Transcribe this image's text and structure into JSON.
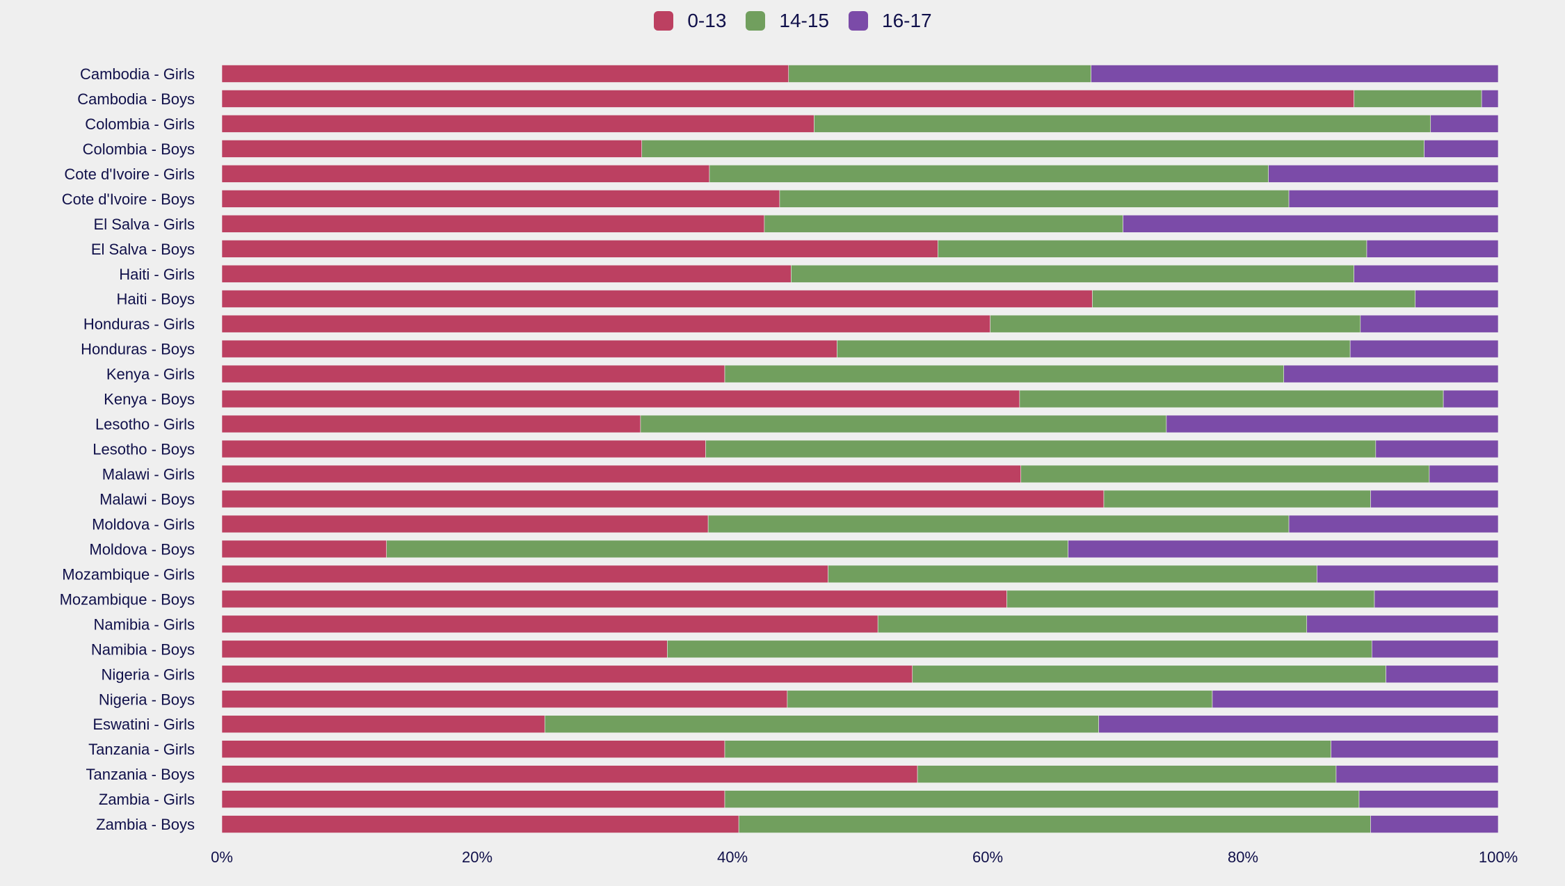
{
  "chart_data": {
    "type": "bar",
    "orientation": "horizontal",
    "stacked": true,
    "normalized": true,
    "title": "",
    "xlabel": "",
    "ylabel": "",
    "xlim": [
      0,
      100
    ],
    "x_ticks": [
      "0%",
      "20%",
      "40%",
      "60%",
      "80%",
      "100%"
    ],
    "legend_position": "top-center",
    "grid": false,
    "categories": [
      "Cambodia - Girls",
      "Cambodia - Boys",
      "Colombia - Girls",
      "Colombia - Boys",
      "Cote d'Ivoire - Girls",
      "Cote d'Ivoire - Boys",
      "El Salva - Girls",
      "El Salva - Boys",
      "Haiti - Girls",
      "Haiti - Boys",
      "Honduras - Girls",
      "Honduras - Boys",
      "Kenya - Girls",
      "Kenya - Boys",
      "Lesotho - Girls",
      "Lesotho - Boys",
      "Malawi - Girls",
      "Malawi - Boys",
      "Moldova - Girls",
      "Moldova - Boys",
      "Mozambique - Girls",
      "Mozambique - Boys",
      "Namibia - Girls",
      "Namibia - Boys",
      "Nigeria - Girls",
      "Nigeria - Boys",
      "Eswatini - Girls",
      "Tanzania - Girls",
      "Tanzania - Boys",
      "Zambia - Girls",
      "Zambia - Boys"
    ],
    "series": [
      {
        "name": "0-13",
        "color": "#bc4061",
        "values": [
          44.4,
          88.7,
          46.4,
          32.9,
          38.2,
          43.7,
          42.5,
          56.1,
          44.6,
          68.2,
          60.2,
          48.2,
          39.4,
          62.5,
          32.8,
          37.9,
          62.6,
          69.1,
          38.1,
          12.9,
          47.5,
          61.5,
          51.4,
          34.9,
          54.1,
          44.3,
          25.3,
          39.4,
          54.5,
          39.4,
          40.5
        ]
      },
      {
        "name": "14-15",
        "color": "#719f5e",
        "values": [
          23.7,
          10.0,
          48.3,
          61.3,
          43.8,
          39.9,
          28.1,
          33.6,
          44.1,
          25.3,
          29.0,
          40.2,
          43.8,
          33.2,
          41.2,
          52.5,
          32.0,
          20.9,
          45.5,
          53.4,
          38.3,
          28.8,
          33.6,
          55.2,
          37.1,
          33.3,
          43.4,
          47.5,
          32.8,
          49.7,
          49.5
        ]
      },
      {
        "name": "16-17",
        "color": "#7b4ba8",
        "values": [
          31.9,
          1.3,
          5.3,
          5.8,
          18.0,
          16.4,
          29.4,
          10.3,
          11.3,
          6.5,
          10.8,
          11.6,
          16.8,
          4.3,
          26.0,
          9.6,
          5.4,
          10.0,
          16.4,
          33.7,
          14.2,
          9.7,
          15.0,
          9.9,
          8.8,
          22.4,
          31.3,
          13.1,
          12.7,
          10.9,
          10.0
        ]
      }
    ]
  }
}
